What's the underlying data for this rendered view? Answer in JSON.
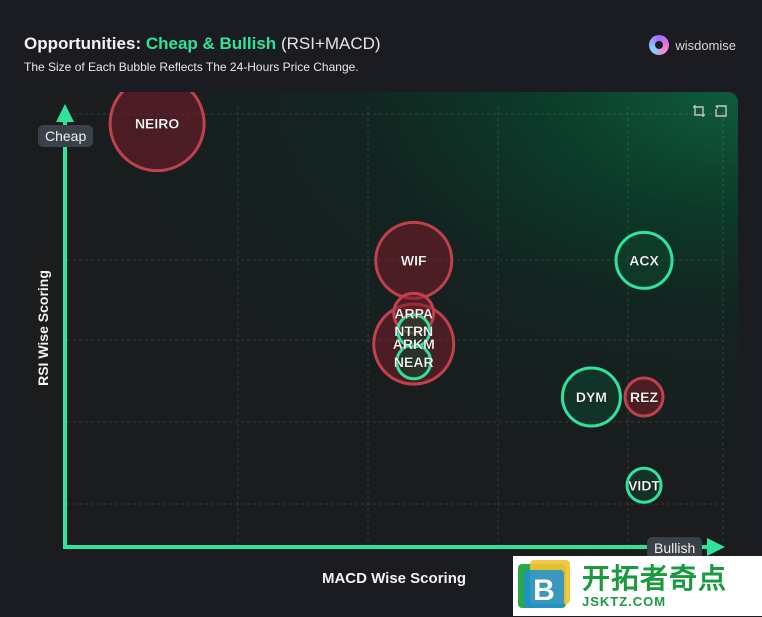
{
  "header": {
    "title_prefix": "Opportunities:",
    "title_accent": "Cheap & Bullish",
    "title_suffix": "(RSI+MACD)",
    "subtitle": "The Size of Each Bubble Reflects The 24-Hours Price Change.",
    "brand": "wisdomise"
  },
  "chart_data": {
    "type": "scatter",
    "xlabel": "MACD Wise Scoring",
    "ylabel": "RSI Wise Scoring",
    "x_axis_tag": "Bullish",
    "y_axis_tag": "Cheap",
    "xlim": [
      0,
      10
    ],
    "ylim": [
      0,
      10
    ],
    "grid": true,
    "points": [
      {
        "label": "NEIRO",
        "x": 1.4,
        "y": 9.6,
        "size": 47,
        "color": "#c0404c"
      },
      {
        "label": "WIF",
        "x": 5.3,
        "y": 6.5,
        "size": 38,
        "color": "#c0404c"
      },
      {
        "label": "ARPA",
        "x": 5.3,
        "y": 5.3,
        "size": 20,
        "color": "#c0404c"
      },
      {
        "label": "NTRN",
        "x": 5.3,
        "y": 4.9,
        "size": 16,
        "color": "#2fe39a"
      },
      {
        "label": "ARKM",
        "x": 5.3,
        "y": 4.6,
        "size": 40,
        "color": "#c0404c"
      },
      {
        "label": "NEAR",
        "x": 5.3,
        "y": 4.2,
        "size": 17,
        "color": "#2fe39a"
      },
      {
        "label": "ACX",
        "x": 8.8,
        "y": 6.5,
        "size": 28,
        "color": "#2fe39a"
      },
      {
        "label": "DYM",
        "x": 8.0,
        "y": 3.4,
        "size": 29,
        "color": "#2fe39a"
      },
      {
        "label": "REZ",
        "x": 8.8,
        "y": 3.4,
        "size": 19,
        "color": "#c0404c"
      },
      {
        "label": "VIDT",
        "x": 8.8,
        "y": 1.4,
        "size": 17,
        "color": "#2fe39a"
      }
    ]
  },
  "watermark": {
    "cn": "开拓者奇点",
    "url": "JSKTZ.COM"
  }
}
